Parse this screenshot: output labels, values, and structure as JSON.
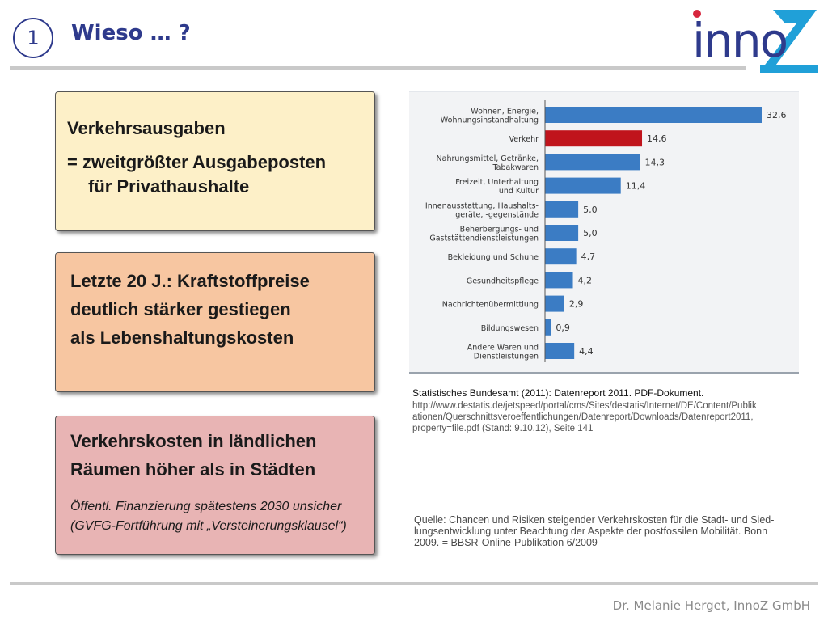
{
  "header": {
    "slide_number": "1",
    "title": "Wieso … ?",
    "logo_text": "innoZ",
    "brand_colors": {
      "navy": "#2e3a8c",
      "cyan": "#20a0d8",
      "red": "#d7263d"
    }
  },
  "boxes": {
    "box1": {
      "heading": "Verkehrsausgaben",
      "line1": "= zweitgrößter Ausgabeposten",
      "line2": "für Privathaushalte",
      "color": "#fdf0c8"
    },
    "box2": {
      "line1": "Letzte 20 J.: Kraftstoffpreise",
      "line2": "deutlich stärker gestiegen",
      "line3": "als Lebenshaltungskosten",
      "color": "#f7c6a1"
    },
    "box3": {
      "line1": "Verkehrskosten in ländlichen",
      "line2": "Räumen höher als in Städten",
      "note1": "Öffentl. Finanzierung spätestens 2030 unsicher",
      "note2": "(GVFG-Fortführung mit „Versteinerungsklausel“)",
      "color": "#e8b4b4"
    }
  },
  "chart_data": {
    "type": "bar",
    "orientation": "horizontal",
    "categories": [
      [
        "Wohnen, Energie,",
        "Wohnungsinstandhaltung"
      ],
      [
        "Verkehr"
      ],
      [
        "Nahrungsmittel, Getränke,",
        "Tabakwaren"
      ],
      [
        "Freizeit, Unterhaltung",
        "und Kultur"
      ],
      [
        "Innenausstattung, Haushalts-",
        "geräte, -gegenstände"
      ],
      [
        "Beherbergungs- und",
        "Gaststättendienstleistungen"
      ],
      [
        "Bekleidung und Schuhe"
      ],
      [
        "Gesundheitspflege"
      ],
      [
        "Nachrichtenübermittlung"
      ],
      [
        "Bildungswesen"
      ],
      [
        "Andere Waren und",
        "Dienstleistungen"
      ]
    ],
    "values": [
      32.6,
      14.6,
      14.3,
      11.4,
      5.0,
      5.0,
      4.7,
      4.2,
      2.9,
      0.9,
      4.4
    ],
    "value_labels": [
      "32,6",
      "14,6",
      "14,3",
      "11,4",
      "5,0",
      "5,0",
      "4,7",
      "4,2",
      "2,9",
      "0,9",
      "4,4"
    ],
    "highlight_index": 1,
    "bar_color": "#3b7cc4",
    "highlight_color": "#c0141c",
    "title": "",
    "xlabel": "",
    "ylabel": "",
    "xlim": [
      0,
      32.6
    ],
    "grid": false,
    "legend": "none"
  },
  "sources": {
    "statistisches_bundesamt": "Statistisches Bundesamt (2011): Datenreport 2011. PDF-Dokument.",
    "url_line1": "http://www.destatis.de/jetspeed/portal/cms/Sites/destatis/Internet/DE/Content/Publik",
    "url_line2": "ationen/Querschnittsveroeffentlichungen/Datenreport/Downloads/Datenreport2011,",
    "url_line3": "property=file.pdf (Stand: 9.10.12), Seite 141",
    "quote_line1": "Quelle: Chancen und Risiken steigender Verkehrskosten für die Stadt- und Sied-",
    "quote_line2": "lungsentwicklung unter Beachtung der Aspekte der postfossilen Mobilität. Bonn",
    "quote_line3": "2009. = BBSR-Online-Publikation 6/2009"
  },
  "footer": {
    "author": "Dr. Melanie Herget, InnoZ GmbH"
  }
}
